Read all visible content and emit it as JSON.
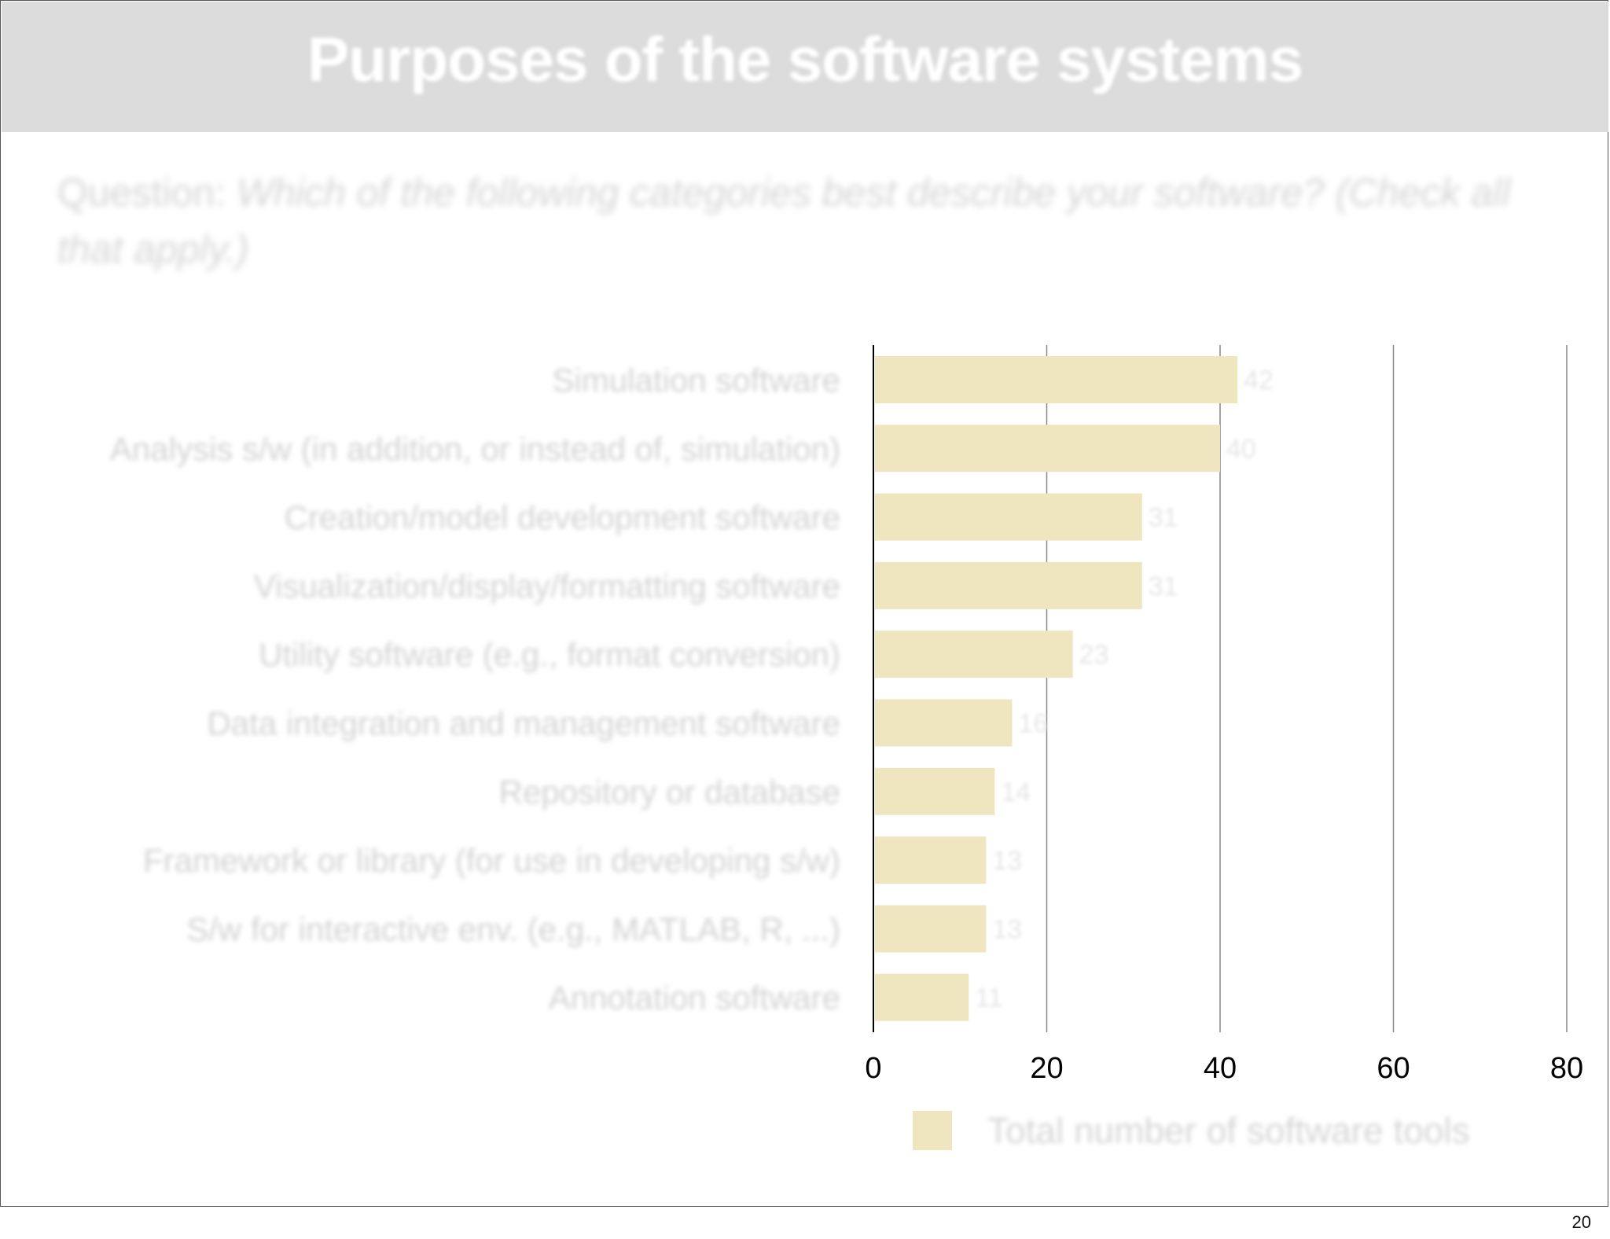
{
  "slide": {
    "title": "Purposes of the software systems",
    "question_label": "Question:",
    "question_text": "Which of the following categories best describe your software? (Check all that apply.)",
    "page_number": "20"
  },
  "colors": {
    "bar": "#efe5bf",
    "title_band": "#dcdcdc",
    "gridline": "#888888",
    "axis": "#000000"
  },
  "chart_data": {
    "type": "bar",
    "orientation": "horizontal",
    "categories": [
      "Simulation software",
      "Analysis s/w (in addition, or instead of, simulation)",
      "Creation/model development software",
      "Visualization/display/formatting software",
      "Utility software (e.g., format conversion)",
      "Data integration and management software",
      "Repository or database",
      "Framework or library (for use in developing s/w)",
      "S/w for interactive env. (e.g., MATLAB, R, ...)",
      "Annotation software"
    ],
    "series": [
      {
        "name": "Total number of software tools",
        "values": [
          42,
          40,
          31,
          31,
          23,
          16,
          14,
          13,
          13,
          11
        ]
      }
    ],
    "xlim": [
      0,
      80
    ],
    "xticks": [
      0,
      20,
      40,
      60,
      80
    ],
    "grid": true,
    "legend": "bottom",
    "data_labels": true
  }
}
